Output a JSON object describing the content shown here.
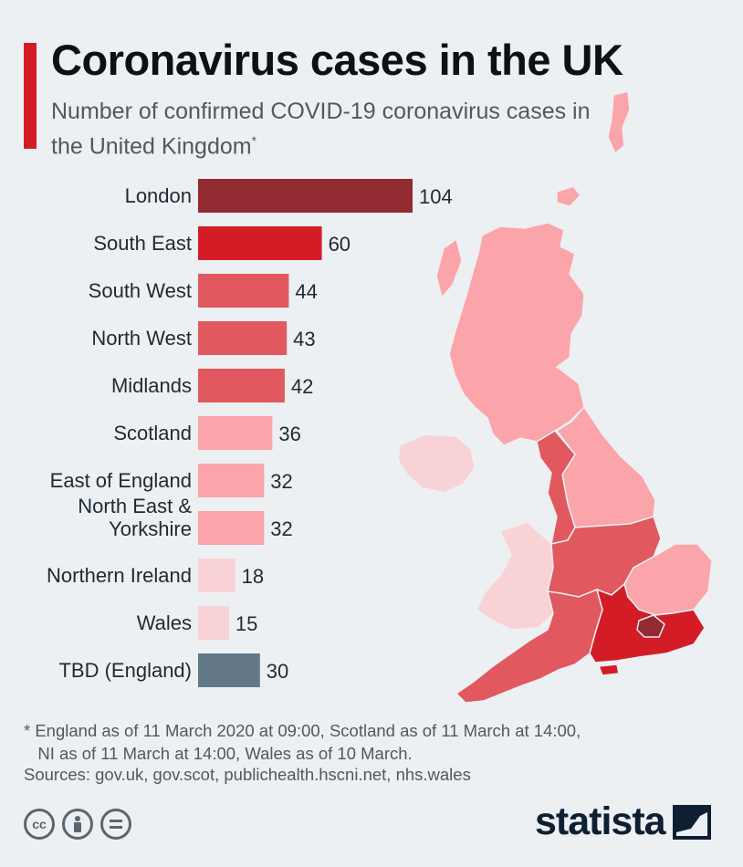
{
  "header": {
    "title": "Coronavirus cases in the UK",
    "subtitle": "Number of confirmed COVID-19 coronavirus cases in the United Kingdom",
    "subtitle_mark": "*"
  },
  "chart_data": {
    "type": "bar",
    "orientation": "horizontal",
    "categories": [
      "London",
      "South East",
      "South West",
      "North West",
      "Midlands",
      "Scotland",
      "East of England",
      "North East & Yorkshire",
      "Northern Ireland",
      "Wales",
      "TBD (England)"
    ],
    "values": [
      104,
      60,
      44,
      43,
      42,
      36,
      32,
      32,
      18,
      15,
      30
    ],
    "colors": [
      "#922a31",
      "#d41c27",
      "#e1585f",
      "#e1585f",
      "#e1585f",
      "#fba4a9",
      "#fba4a9",
      "#fba4a9",
      "#f9d2d5",
      "#f9d2d5",
      "#627887"
    ],
    "title": "",
    "xlabel": "",
    "ylabel": "",
    "xlim": [
      0,
      104
    ],
    "grid": false,
    "data_labels": true
  },
  "map": {
    "regions": {
      "scotland": "#fba4a9",
      "northern_ireland": "#f9d2d5",
      "wales": "#f9d2d5",
      "north_west": "#e1585f",
      "north_east_yorkshire": "#fba4a9",
      "midlands": "#e1585f",
      "east_of_england": "#fba4a9",
      "south_west": "#e1585f",
      "south_east": "#d41c27",
      "london": "#922a31"
    }
  },
  "footer": {
    "footnote": "* England as of 11 March 2020 at 09:00, Scotland as of 11 March at 14:00,\n   NI as of 11 March at 14:00, Wales as of 10 March.",
    "sources": "Sources: gov.uk, gov.scot, publichealth.hscni.net, nhs.wales",
    "license_icons": [
      "cc-icon",
      "attribution-icon",
      "no-derivatives-icon"
    ],
    "brand": "statista"
  }
}
